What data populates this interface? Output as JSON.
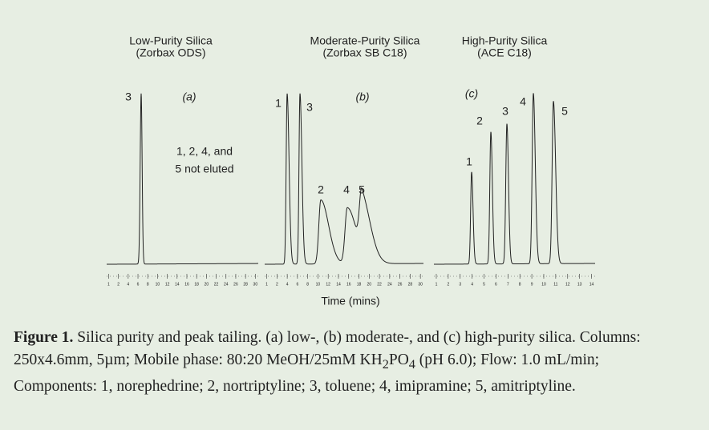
{
  "panels": [
    {
      "title": [
        "Low-Purity Silica",
        "(Zorbax ODS)"
      ],
      "letter": "(a)",
      "peak_labels": [
        "3"
      ],
      "note": [
        "1, 2, 4, and",
        "5 not eluted"
      ],
      "ticks": [
        "1",
        "2",
        "4",
        "6",
        "8",
        "10",
        "12",
        "14",
        "16",
        "18",
        "20",
        "22",
        "24",
        "26",
        "28",
        "30"
      ]
    },
    {
      "title": [
        "Moderate-Purity Silica",
        "(Zorbax SB C18)"
      ],
      "letter": "(b)",
      "peak_labels": [
        "1",
        "3",
        "2",
        "4",
        "5"
      ],
      "ticks": [
        "1",
        "2",
        "4",
        "6",
        "8",
        "10",
        "12",
        "14",
        "16",
        "18",
        "20",
        "22",
        "24",
        "26",
        "28",
        "30"
      ]
    },
    {
      "title": [
        "High-Purity Silica",
        "(ACE C18)"
      ],
      "letter": "(c)",
      "peak_labels": [
        "1",
        "2",
        "3",
        "4",
        "5"
      ],
      "ticks": [
        "1",
        "2",
        "3",
        "4",
        "5",
        "6",
        "7",
        "8",
        "9",
        "10",
        "11",
        "12",
        "13",
        "14"
      ]
    }
  ],
  "x_axis_label": "Time (mins)",
  "caption": {
    "label": "Figure 1.",
    "text_before": " Silica purity and peak tailing. (a) low-, (b) moderate-, and (c) high-purity silica. Columns: 250x4.6mm, 5µm; Mobile phase: 80:20 MeOH/25mM KH",
    "sub1": "2",
    "mid": "PO",
    "sub2": "4",
    "text_after": " (pH 6.0); Flow: 1.0 mL/min; Components: 1, norephedrine; 2, nortriptyline; 3, toluene; 4, imipramine; 5, amitriptyline."
  }
}
